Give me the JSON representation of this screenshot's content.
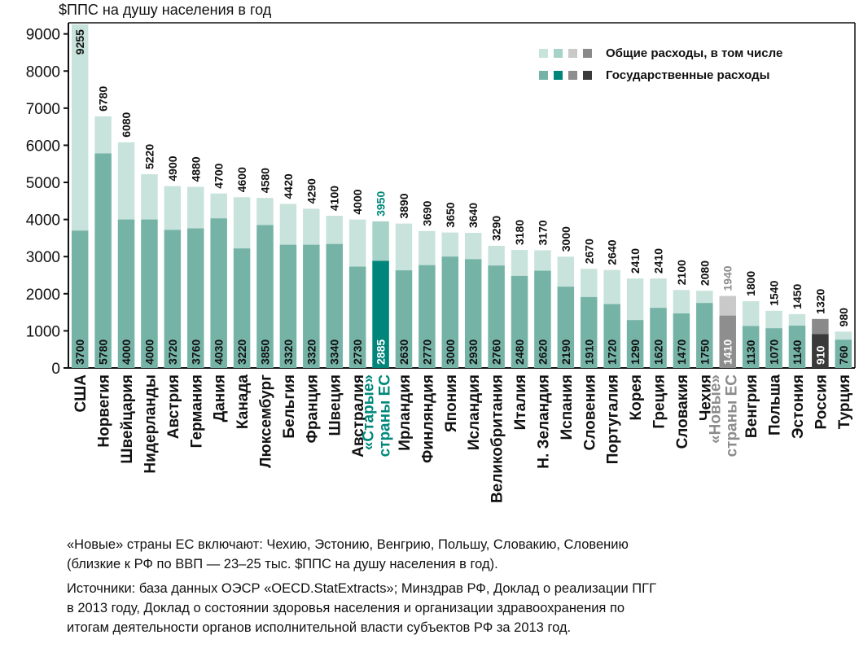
{
  "chart_data": {
    "type": "bar",
    "ylabel": "$ППС на душу населения в год",
    "ylim": [
      0,
      9300
    ],
    "yticks": [
      0,
      1000,
      2000,
      3000,
      4000,
      5000,
      6000,
      7000,
      8000,
      9000
    ],
    "grid": false,
    "legend": {
      "position": "top-right",
      "entries": [
        "Общие расходы, в том числе",
        "Государственные расходы"
      ]
    },
    "categories": [
      "США",
      "Норвегия",
      "Швейцария",
      "Нидерланды",
      "Австрия",
      "Германия",
      "Дания",
      "Канада",
      "Люксембург",
      "Бельгия",
      "Франция",
      "Швеция",
      "Австралия",
      "«Старые» страны ЕС",
      "Ирландия",
      "Финляндия",
      "Япония",
      "Исландия",
      "Великобритания",
      "Италия",
      "Н. Зеландия",
      "Испания",
      "Словения",
      "Португалия",
      "Корея",
      "Греция",
      "Словакия",
      "Чехия",
      "«Новые» страны ЕС",
      "Венгрия",
      "Польша",
      "Эстония",
      "Россия",
      "Турция"
    ],
    "series": [
      {
        "name": "Общие расходы, в том числе",
        "values": [
          9255,
          6780,
          6080,
          5220,
          4900,
          4880,
          4700,
          4600,
          4580,
          4420,
          4290,
          4100,
          4000,
          3950,
          3890,
          3690,
          3650,
          3640,
          3290,
          3180,
          3170,
          3000,
          2670,
          2640,
          2410,
          2410,
          2100,
          2080,
          1940,
          1800,
          1540,
          1450,
          1320,
          980
        ]
      },
      {
        "name": "Государственные расходы",
        "values": [
          3700,
          5780,
          4000,
          4000,
          3720,
          3760,
          4030,
          3220,
          3850,
          3320,
          3320,
          3340,
          2730,
          2885,
          2630,
          2770,
          3000,
          2930,
          2760,
          2480,
          2620,
          2190,
          1910,
          1720,
          1290,
          1620,
          1470,
          1750,
          1410,
          1130,
          1070,
          1140,
          910,
          760
        ]
      }
    ],
    "highlight": {
      "old_eu": 13,
      "new_eu": 28,
      "russia": 32
    }
  },
  "colors": {
    "total_default": "#c7e3db",
    "public_default": "#76b3a7",
    "total_old_eu": "#a6d2c7",
    "public_old_eu": "#00857a",
    "total_new_eu": "#c9c9c9",
    "public_new_eu": "#8e8e8e",
    "total_russia": "#8a8a8a",
    "public_russia": "#3a3a3a",
    "highlight_text_old": "#00897b",
    "highlight_text_new": "#8c8c8c"
  },
  "notes": {
    "new_eu": "«Новые» страны ЕС включают: Чехию, Эстонию, Венгрию, Польшу, Словакию, Словению\n(близкие к РФ по ВВП — 23–25 тыс. $ППС на душу населения в год).",
    "sources": "Источники: база данных ОЭСР «OECD.StatExtracts»; Минздрав РФ, Доклад о реализации ПГГ\nв 2013 году, Доклад о состоянии здоровья населения и организации здравоохранения по\nитогам деятельности органов исполнительной власти субъектов РФ за 2013 год."
  }
}
